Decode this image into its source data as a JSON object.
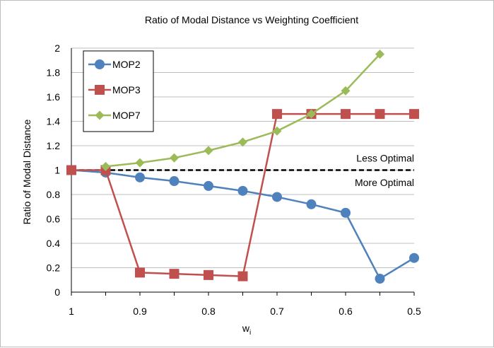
{
  "chart_data": {
    "type": "line",
    "title": "Ratio of Modal Distance vs Weighting Coefficient",
    "xlabel": "w",
    "xlabel_subscript": "i",
    "ylabel": "Ratio of Modal Distance",
    "x": [
      1,
      0.95,
      0.9,
      0.85,
      0.8,
      0.75,
      0.7,
      0.65,
      0.6,
      0.55,
      0.5
    ],
    "x_tick_labels": [
      "1",
      "0.9",
      "0.8",
      "0.7",
      "0.6",
      "0.5"
    ],
    "x_tick_values": [
      1,
      0.9,
      0.8,
      0.7,
      0.6,
      0.5
    ],
    "xlim": [
      1,
      0.5
    ],
    "y_tick_labels": [
      "0",
      "0.2",
      "0.4",
      "0.6",
      "0.8",
      "1",
      "1.2",
      "1.4",
      "1.6",
      "1.8",
      "2"
    ],
    "ylim": [
      0,
      2
    ],
    "grid": "horizontal",
    "legend_position": "top-left",
    "series": [
      {
        "name": "MOP2",
        "color": "#4f81bd",
        "marker": "circle",
        "values": [
          1.0,
          0.98,
          0.94,
          0.91,
          0.87,
          0.83,
          0.78,
          0.72,
          0.65,
          0.11,
          0.28
        ]
      },
      {
        "name": "MOP3",
        "color": "#c0504d",
        "marker": "square",
        "values": [
          1.0,
          1.0,
          0.16,
          0.15,
          0.14,
          0.13,
          1.46,
          1.46,
          1.46,
          1.46,
          1.46
        ]
      },
      {
        "name": "MOP7",
        "color": "#9bbb59",
        "marker": "diamond",
        "values": [
          null,
          1.03,
          1.06,
          1.1,
          1.16,
          1.23,
          1.32,
          1.46,
          1.65,
          1.95,
          null
        ]
      }
    ],
    "reference_line": {
      "y": 1,
      "style": "dashed",
      "color": "#000000"
    },
    "annotations": [
      {
        "text": "Less Optimal",
        "x": 0.5,
        "y": 1.1
      },
      {
        "text": "More Optimal",
        "x": 0.5,
        "y": 0.9
      }
    ]
  }
}
